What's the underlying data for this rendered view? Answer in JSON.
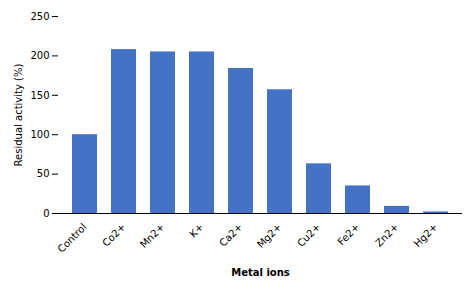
{
  "chart_data": {
    "type": "bar",
    "categories": [
      "Control",
      "Co2+",
      "Mn2+",
      "K+",
      "Ca2+",
      "Mg2+",
      "Cu2+",
      "Fe2+",
      "Zn2+",
      "Hg2+"
    ],
    "values": [
      100,
      208,
      205,
      205,
      184,
      157,
      63,
      35,
      9,
      2
    ],
    "color": "#4472C4",
    "xlabel": "Metal ions",
    "ylabel": "Residual activity (%)",
    "ylim": [
      0,
      250
    ],
    "yticks": [
      0,
      50,
      100,
      150,
      200,
      250
    ],
    "grid": false
  }
}
